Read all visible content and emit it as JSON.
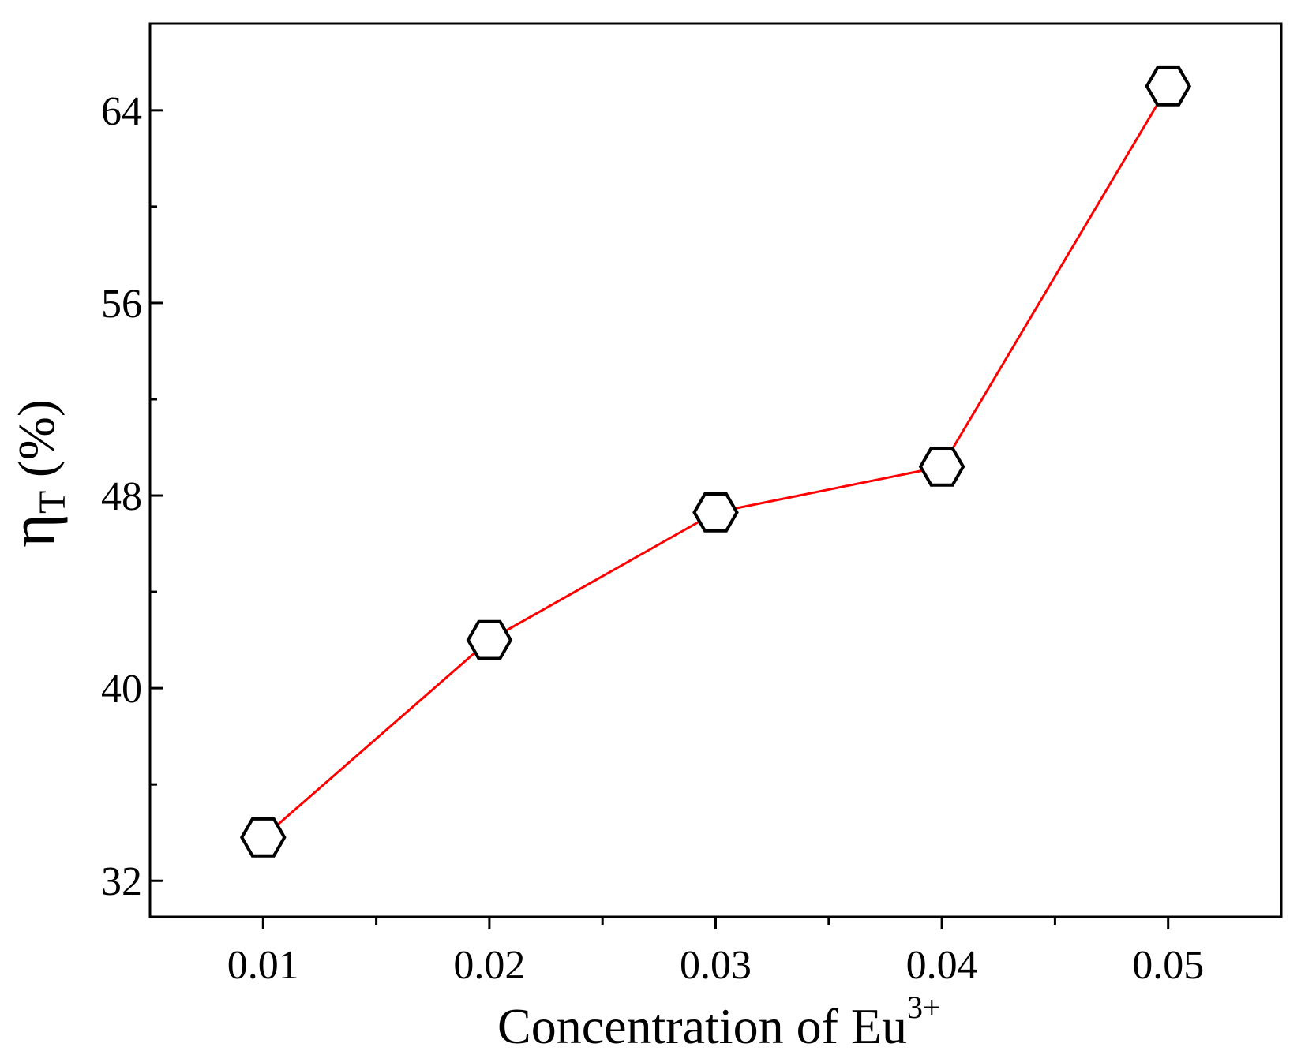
{
  "chart_data": {
    "type": "line",
    "x": [
      0.01,
      0.02,
      0.03,
      0.04,
      0.05
    ],
    "series": [
      {
        "values": [
          33.8,
          42.0,
          47.3,
          49.2,
          65.0
        ],
        "line_color": "#ff0000",
        "marker": "hexagon-open"
      }
    ],
    "xlim": [
      0.005,
      0.055
    ],
    "ylim": [
      30.5,
      67.6
    ],
    "x_ticks": [
      0.01,
      0.02,
      0.03,
      0.04,
      0.05
    ],
    "x_tick_labels": [
      "0.01",
      "0.02",
      "0.03",
      "0.04",
      "0.05"
    ],
    "y_ticks": [
      32,
      40,
      48,
      56,
      64
    ],
    "y_tick_labels": [
      "32",
      "40",
      "48",
      "56",
      "64"
    ],
    "xlabel": {
      "text": "Concentration of Eu",
      "superscript": "3+"
    },
    "ylabel": {
      "symbol": "η",
      "subscript": "T",
      "unit": "(%)"
    },
    "grid": false,
    "legend": "none"
  }
}
